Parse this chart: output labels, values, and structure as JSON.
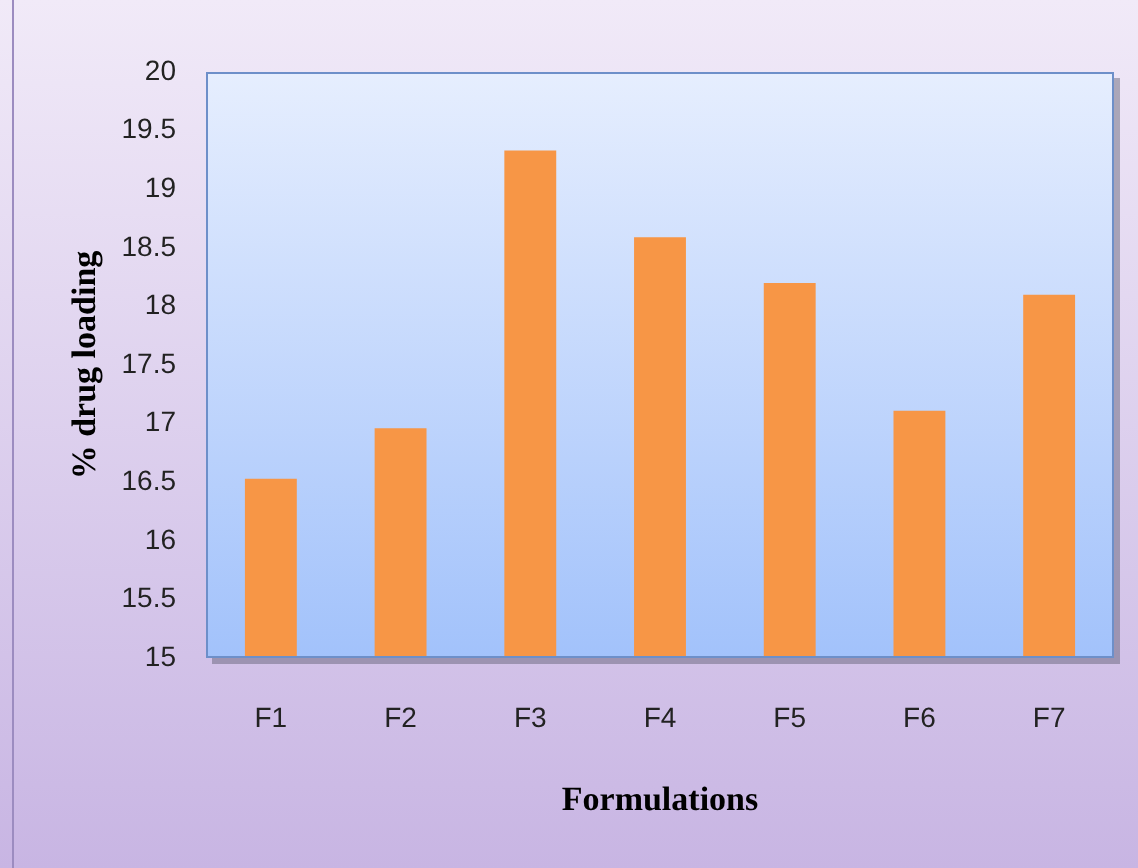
{
  "chart_data": {
    "type": "bar",
    "xlabel": "Formulations",
    "ylabel": "% drug loading",
    "categories": [
      "F1",
      "F2",
      "F3",
      "F4",
      "F5",
      "F6",
      "F7"
    ],
    "values": [
      16.53,
      16.96,
      19.33,
      18.59,
      18.2,
      17.11,
      18.1
    ],
    "color": "#f79646",
    "ylim": [
      15,
      20
    ],
    "yticks": [
      15,
      15.5,
      16,
      16.5,
      17,
      17.5,
      18,
      18.5,
      19,
      19.5,
      20
    ]
  }
}
